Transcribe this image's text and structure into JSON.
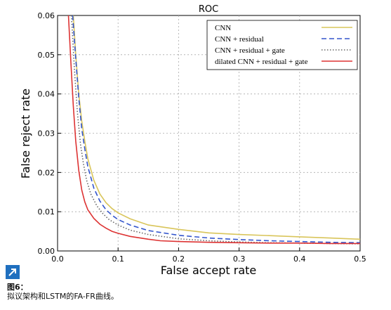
{
  "chart_data": {
    "type": "line",
    "title": "ROC",
    "xlabel": "False accept rate",
    "ylabel": "False reject rate",
    "xlim": [
      0.0,
      0.5
    ],
    "ylim": [
      0.0,
      0.06
    ],
    "x_ticks": [
      "0.0",
      "0.1",
      "0.2",
      "0.3",
      "0.4",
      "0.5"
    ],
    "y_ticks": [
      "0.00",
      "0.01",
      "0.02",
      "0.03",
      "0.04",
      "0.05",
      "0.06"
    ],
    "grid": true,
    "legend_position": "top-right",
    "series": [
      {
        "name": "CNN",
        "color": "#d9c55a",
        "style": "solid",
        "x": [
          0.026,
          0.03,
          0.035,
          0.04,
          0.045,
          0.05,
          0.06,
          0.07,
          0.08,
          0.09,
          0.1,
          0.12,
          0.15,
          0.2,
          0.25,
          0.3,
          0.35,
          0.4,
          0.45,
          0.5
        ],
        "y": [
          0.06,
          0.05,
          0.04,
          0.033,
          0.028,
          0.0235,
          0.018,
          0.0145,
          0.0123,
          0.0108,
          0.0097,
          0.0082,
          0.0066,
          0.0055,
          0.0046,
          0.0042,
          0.0039,
          0.0036,
          0.0033,
          0.003
        ]
      },
      {
        "name": "CNN + residual",
        "color": "#3355cc",
        "style": "dashed",
        "x": [
          0.025,
          0.03,
          0.035,
          0.04,
          0.045,
          0.05,
          0.06,
          0.07,
          0.08,
          0.09,
          0.1,
          0.12,
          0.15,
          0.2,
          0.25,
          0.3,
          0.35,
          0.4,
          0.45,
          0.5
        ],
        "y": [
          0.06,
          0.049,
          0.039,
          0.031,
          0.026,
          0.0215,
          0.016,
          0.0127,
          0.0105,
          0.0091,
          0.008,
          0.0066,
          0.0052,
          0.004,
          0.0033,
          0.0029,
          0.0026,
          0.0024,
          0.0022,
          0.0021
        ]
      },
      {
        "name": "CNN + residual + gate",
        "color": "#666666",
        "style": "dotted",
        "x": [
          0.023,
          0.028,
          0.033,
          0.038,
          0.043,
          0.048,
          0.055,
          0.065,
          0.075,
          0.085,
          0.1,
          0.12,
          0.15,
          0.2,
          0.25,
          0.3,
          0.35,
          0.4,
          0.45,
          0.5
        ],
        "y": [
          0.06,
          0.046,
          0.035,
          0.027,
          0.022,
          0.018,
          0.0145,
          0.0115,
          0.0095,
          0.008,
          0.0066,
          0.0053,
          0.0042,
          0.0031,
          0.0026,
          0.0023,
          0.0021,
          0.002,
          0.0019,
          0.0018
        ]
      },
      {
        "name": "dilated CNN + residual + gate",
        "color": "#dd3333",
        "style": "solid",
        "x": [
          0.018,
          0.022,
          0.026,
          0.03,
          0.035,
          0.04,
          0.045,
          0.05,
          0.06,
          0.07,
          0.08,
          0.09,
          0.1,
          0.12,
          0.15,
          0.17,
          0.2,
          0.25,
          0.3,
          0.35,
          0.4,
          0.45,
          0.5
        ],
        "y": [
          0.06,
          0.048,
          0.037,
          0.028,
          0.0205,
          0.0155,
          0.0125,
          0.0105,
          0.0083,
          0.0068,
          0.0058,
          0.005,
          0.0045,
          0.0037,
          0.003,
          0.0026,
          0.0024,
          0.0022,
          0.0021,
          0.002,
          0.002,
          0.0019,
          0.0019
        ]
      }
    ]
  },
  "caption": {
    "label": "图6：",
    "text": "拟议架构和LSTM的FA-FR曲线。"
  }
}
